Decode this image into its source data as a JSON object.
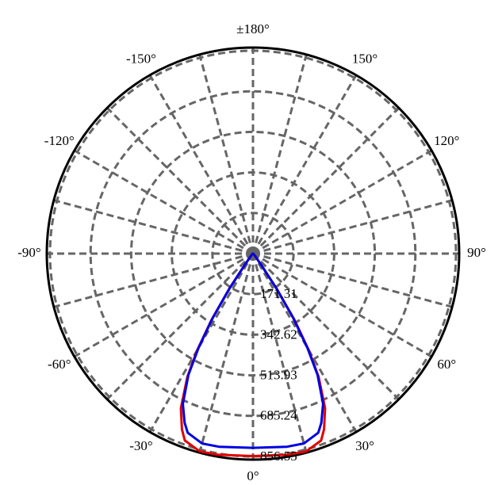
{
  "chart_data": {
    "type": "polar",
    "theta": [
      -180,
      -90,
      -60,
      -50,
      -40,
      -36,
      -34,
      -32,
      -30,
      -28,
      -25,
      -22,
      -20,
      -15,
      -10,
      0,
      10,
      15,
      20,
      22,
      25,
      28,
      30,
      32,
      34,
      36,
      40,
      50,
      60,
      90,
      180
    ],
    "series": [
      {
        "color": "#e00000",
        "values": [
          0,
          0,
          2,
          5,
          15,
          60,
          180,
          330,
          470,
          590,
          720,
          800,
          840,
          865,
          862,
          855,
          862,
          865,
          840,
          800,
          720,
          590,
          470,
          330,
          180,
          60,
          15,
          5,
          2,
          0,
          0
        ]
      },
      {
        "color": "#0000e0",
        "values": [
          0,
          0,
          2,
          5,
          15,
          60,
          175,
          320,
          460,
          580,
          700,
          770,
          805,
          830,
          828,
          820,
          828,
          830,
          805,
          770,
          700,
          580,
          460,
          320,
          175,
          60,
          15,
          5,
          2,
          0,
          0
        ]
      }
    ],
    "rlim": [
      0,
      870
    ],
    "rticks": [
      171.31,
      342.62,
      513.93,
      685.24,
      856.55
    ],
    "thetaticks": [
      {
        "value": 0,
        "label": "0°"
      },
      {
        "value": 30,
        "label": "30°"
      },
      {
        "value": 60,
        "label": "60°"
      },
      {
        "value": 90,
        "label": "90°"
      },
      {
        "value": 120,
        "label": "120°"
      },
      {
        "value": 150,
        "label": "150°"
      },
      {
        "value": 180,
        "label": "±180°"
      },
      {
        "value": -150,
        "label": "-150°"
      },
      {
        "value": -120,
        "label": "-120°"
      },
      {
        "value": -90,
        "label": "-90°"
      },
      {
        "value": -60,
        "label": "-60°"
      },
      {
        "value": -30,
        "label": "-30°"
      }
    ],
    "theta_grid_step": 15,
    "grid": true
  }
}
